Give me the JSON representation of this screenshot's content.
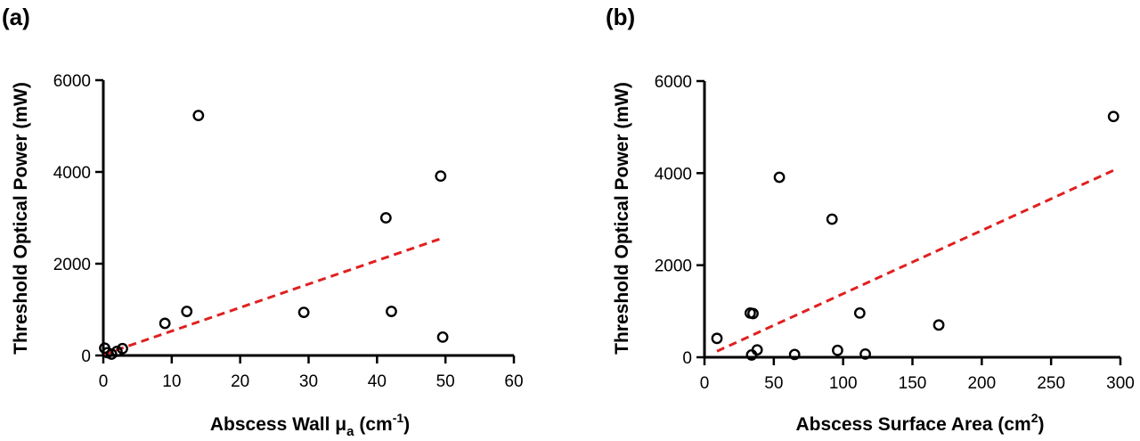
{
  "colors": {
    "fit_line": "#e02020",
    "axis": "#000000",
    "points": "#000000"
  },
  "chart_data": [
    {
      "type": "scatter",
      "panel_label": "(a)",
      "xlabel_main": "Abscess Wall μ",
      "xlabel_sub": "a",
      "xlabel_mid": " (cm",
      "xlabel_sup": "-1",
      "xlabel_end": ")",
      "ylabel": "Threshold Optical Power (mW)",
      "xlim": [
        0,
        60
      ],
      "ylim": [
        0,
        6000
      ],
      "xticks": [
        0,
        10,
        20,
        30,
        40,
        50,
        60
      ],
      "yticks": [
        0,
        2000,
        4000,
        6000
      ],
      "points": [
        {
          "x": 0.2,
          "y": 160
        },
        {
          "x": 0.6,
          "y": 60
        },
        {
          "x": 1.2,
          "y": 30
        },
        {
          "x": 2.0,
          "y": 90
        },
        {
          "x": 2.8,
          "y": 150
        },
        {
          "x": 9.0,
          "y": 700
        },
        {
          "x": 12.2,
          "y": 960
        },
        {
          "x": 13.9,
          "y": 5230
        },
        {
          "x": 29.3,
          "y": 940
        },
        {
          "x": 41.3,
          "y": 3000
        },
        {
          "x": 42.1,
          "y": 960
        },
        {
          "x": 49.3,
          "y": 3910
        },
        {
          "x": 49.6,
          "y": 400
        }
      ],
      "fit_line": {
        "x": [
          0,
          49.6
        ],
        "y": [
          20,
          2560
        ]
      }
    },
    {
      "type": "scatter",
      "panel_label": "(b)",
      "xlabel_main": "Abscess Surface Area (cm",
      "xlabel_sup": "2",
      "xlabel_end": ")",
      "ylabel": "Threshold Optical Power (mW)",
      "xlim": [
        0,
        300
      ],
      "ylim": [
        0,
        6000
      ],
      "xticks": [
        0,
        50,
        100,
        150,
        200,
        250,
        300
      ],
      "yticks": [
        0,
        2000,
        4000,
        6000
      ],
      "points": [
        {
          "x": 9,
          "y": 410
        },
        {
          "x": 33,
          "y": 960
        },
        {
          "x": 35,
          "y": 950
        },
        {
          "x": 34,
          "y": 50
        },
        {
          "x": 38,
          "y": 160
        },
        {
          "x": 54,
          "y": 3910
        },
        {
          "x": 65,
          "y": 60
        },
        {
          "x": 92,
          "y": 3000
        },
        {
          "x": 96,
          "y": 150
        },
        {
          "x": 112,
          "y": 960
        },
        {
          "x": 116,
          "y": 70
        },
        {
          "x": 169,
          "y": 700
        },
        {
          "x": 295,
          "y": 5230
        }
      ],
      "fit_line": {
        "x": [
          9,
          295
        ],
        "y": [
          130,
          4060
        ]
      }
    }
  ]
}
